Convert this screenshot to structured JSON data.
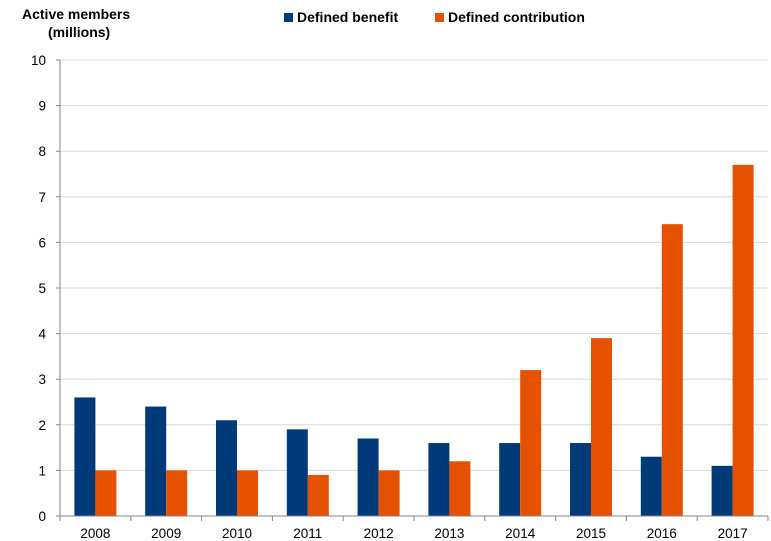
{
  "chart_data": {
    "type": "bar",
    "ylabel_line1": "Active members",
    "ylabel_line2": "(millions)",
    "categories": [
      "2008",
      "2009",
      "2010",
      "2011",
      "2012",
      "2013",
      "2014",
      "2015",
      "2016",
      "2017"
    ],
    "series": [
      {
        "name": "Defined benefit",
        "color": "#003a78",
        "values": [
          2.6,
          2.4,
          2.1,
          1.9,
          1.7,
          1.6,
          1.6,
          1.6,
          1.3,
          1.1
        ]
      },
      {
        "name": "Defined contribution",
        "color": "#e65100",
        "values": [
          1.0,
          1.0,
          1.0,
          0.9,
          1.0,
          1.2,
          3.2,
          3.9,
          6.4,
          7.7
        ]
      }
    ],
    "ylim": [
      0,
      10
    ],
    "yticks": [
      0,
      1,
      2,
      3,
      4,
      5,
      6,
      7,
      8,
      9,
      10
    ],
    "grid": true,
    "legend_position": "top"
  }
}
